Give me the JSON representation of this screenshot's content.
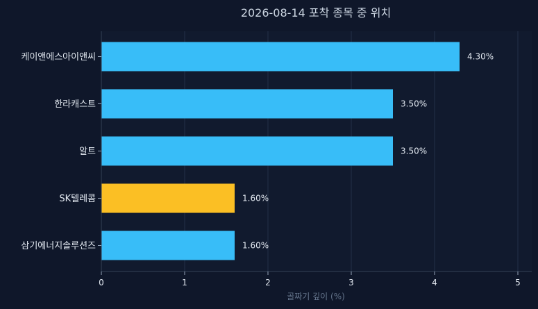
{
  "chart_data": {
    "type": "bar",
    "orientation": "horizontal",
    "title": "2026-08-14 포착 종목 중 위치",
    "xlabel": "골짜기 깊이 (%)",
    "ylabel": "",
    "xlim": [
      0,
      5
    ],
    "xticks": [
      "0",
      "1",
      "2",
      "3",
      "4",
      "5"
    ],
    "grid": true,
    "categories": [
      "케이앤에스아이앤씨",
      "한라캐스트",
      "알트",
      "SK텔레콤",
      "삼기에너지솔루션즈"
    ],
    "values": [
      4.3,
      3.5,
      3.5,
      1.6,
      1.6
    ],
    "value_labels": [
      "4.30%",
      "3.50%",
      "3.50%",
      "1.60%",
      "1.60%"
    ],
    "highlight_index": 3,
    "colors": {
      "bar": "#38bdf8",
      "highlight": "#fbbf24",
      "background": "#0f172a",
      "plot_background": "#111a2e",
      "grid": "#243048"
    }
  }
}
